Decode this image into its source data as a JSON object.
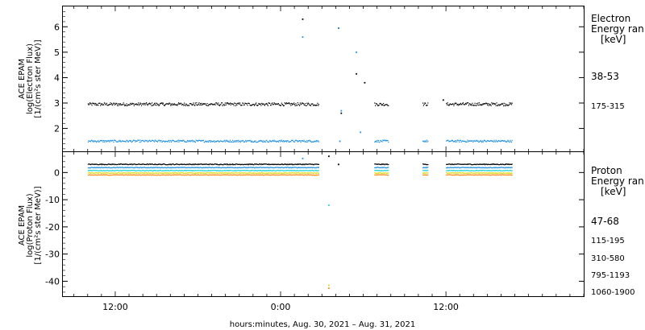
{
  "chart_data": [
    {
      "type": "scatter",
      "panel": "electron",
      "ylabel": [
        "ACE EPAM",
        "log(Electron Flux)",
        "[1/(cm²s ster MeV)]"
      ],
      "ylim": [
        1.1,
        6.8
      ],
      "yticks": [
        2,
        3,
        4,
        5,
        6
      ],
      "legend_title": [
        "Electron",
        "Energy ran",
        "[keV]"
      ],
      "series": [
        {
          "name": "38-53",
          "color": "#000000",
          "base": 2.95,
          "noise": 0.06,
          "segments": [
            [
              10.0,
              26.75
            ],
            [
              30.8,
              31.8
            ],
            [
              34.3,
              34.7
            ],
            [
              36.0,
              40.8
            ]
          ],
          "spikes": [
            [
              25.6,
              6.3
            ],
            [
              28.2,
              5.95
            ],
            [
              29.5,
              4.15
            ],
            [
              30.1,
              3.8
            ],
            [
              35.8,
              3.12
            ],
            [
              28.4,
              2.6
            ]
          ]
        },
        {
          "name": "175-315",
          "color": "#1f8fde",
          "base": 1.5,
          "noise": 0.04,
          "segments": [
            [
              10.0,
              26.75
            ],
            [
              30.8,
              31.8
            ],
            [
              34.3,
              34.7
            ],
            [
              36.0,
              40.8
            ]
          ],
          "spikes": [
            [
              25.6,
              5.6
            ],
            [
              28.2,
              5.95
            ],
            [
              29.5,
              5.0
            ],
            [
              28.4,
              2.7
            ],
            [
              29.8,
              1.85
            ],
            [
              28.3,
              1.5
            ]
          ]
        }
      ]
    },
    {
      "type": "scatter",
      "panel": "proton",
      "ylabel": [
        "ACE EPAM",
        "log(Proton Flux)",
        "[1/(cm²s ster MeV)]"
      ],
      "ylim": [
        -45.5,
        7.5
      ],
      "yticks": [
        0,
        -10,
        -20,
        -30,
        -40
      ],
      "legend_title": [
        "Proton",
        "Energy ran",
        "[keV]"
      ],
      "series": [
        {
          "name": "47-68",
          "color": "#000000",
          "base": 3.0,
          "noise": 0.15,
          "segments": [
            [
              10.0,
              26.75
            ],
            [
              30.8,
              31.8
            ],
            [
              34.3,
              34.7
            ],
            [
              36.0,
              40.8
            ]
          ],
          "spikes": [
            [
              27.5,
              6.0
            ],
            [
              28.2,
              3.0
            ]
          ]
        },
        {
          "name": "115-195",
          "color": "#1f8fde",
          "base": 1.8,
          "noise": 0.12,
          "segments": [
            [
              10.0,
              26.75
            ],
            [
              30.8,
              31.8
            ],
            [
              34.3,
              34.7
            ],
            [
              36.0,
              40.8
            ]
          ],
          "spikes": [
            [
              25.6,
              5.2
            ]
          ]
        },
        {
          "name": "310-580",
          "color": "#22d3d3",
          "base": 0.7,
          "noise": 0.12,
          "segments": [
            [
              10.0,
              26.75
            ],
            [
              30.8,
              31.8
            ],
            [
              34.3,
              34.7
            ],
            [
              36.0,
              40.8
            ]
          ],
          "spikes": [
            [
              27.5,
              -12.0
            ]
          ]
        },
        {
          "name": "795-1193",
          "color": "#d9d919",
          "base": -0.2,
          "noise": 0.12,
          "segments": [
            [
              10.0,
              26.75
            ],
            [
              30.8,
              31.8
            ],
            [
              34.3,
              34.7
            ],
            [
              36.0,
              40.8
            ]
          ],
          "spikes": [
            [
              27.5,
              -41.5
            ]
          ]
        },
        {
          "name": "1060-1900",
          "color": "#ff8c1a",
          "base": -0.9,
          "noise": 0.12,
          "segments": [
            [
              10.0,
              26.75
            ],
            [
              30.8,
              31.8
            ],
            [
              34.3,
              34.7
            ],
            [
              36.0,
              40.8
            ]
          ],
          "spikes": [
            [
              27.5,
              -42.5
            ]
          ]
        }
      ]
    }
  ],
  "x_axis": {
    "label": "hours:minutes, Aug. 30, 2021 – Aug. 31, 2021",
    "xlim": [
      8.2,
      46.0
    ],
    "ticks": [
      {
        "x": 12,
        "label": "12:00"
      },
      {
        "x": 24,
        "label": "0:00"
      },
      {
        "x": 36,
        "label": "12:00"
      }
    ],
    "minor_step": 1
  }
}
